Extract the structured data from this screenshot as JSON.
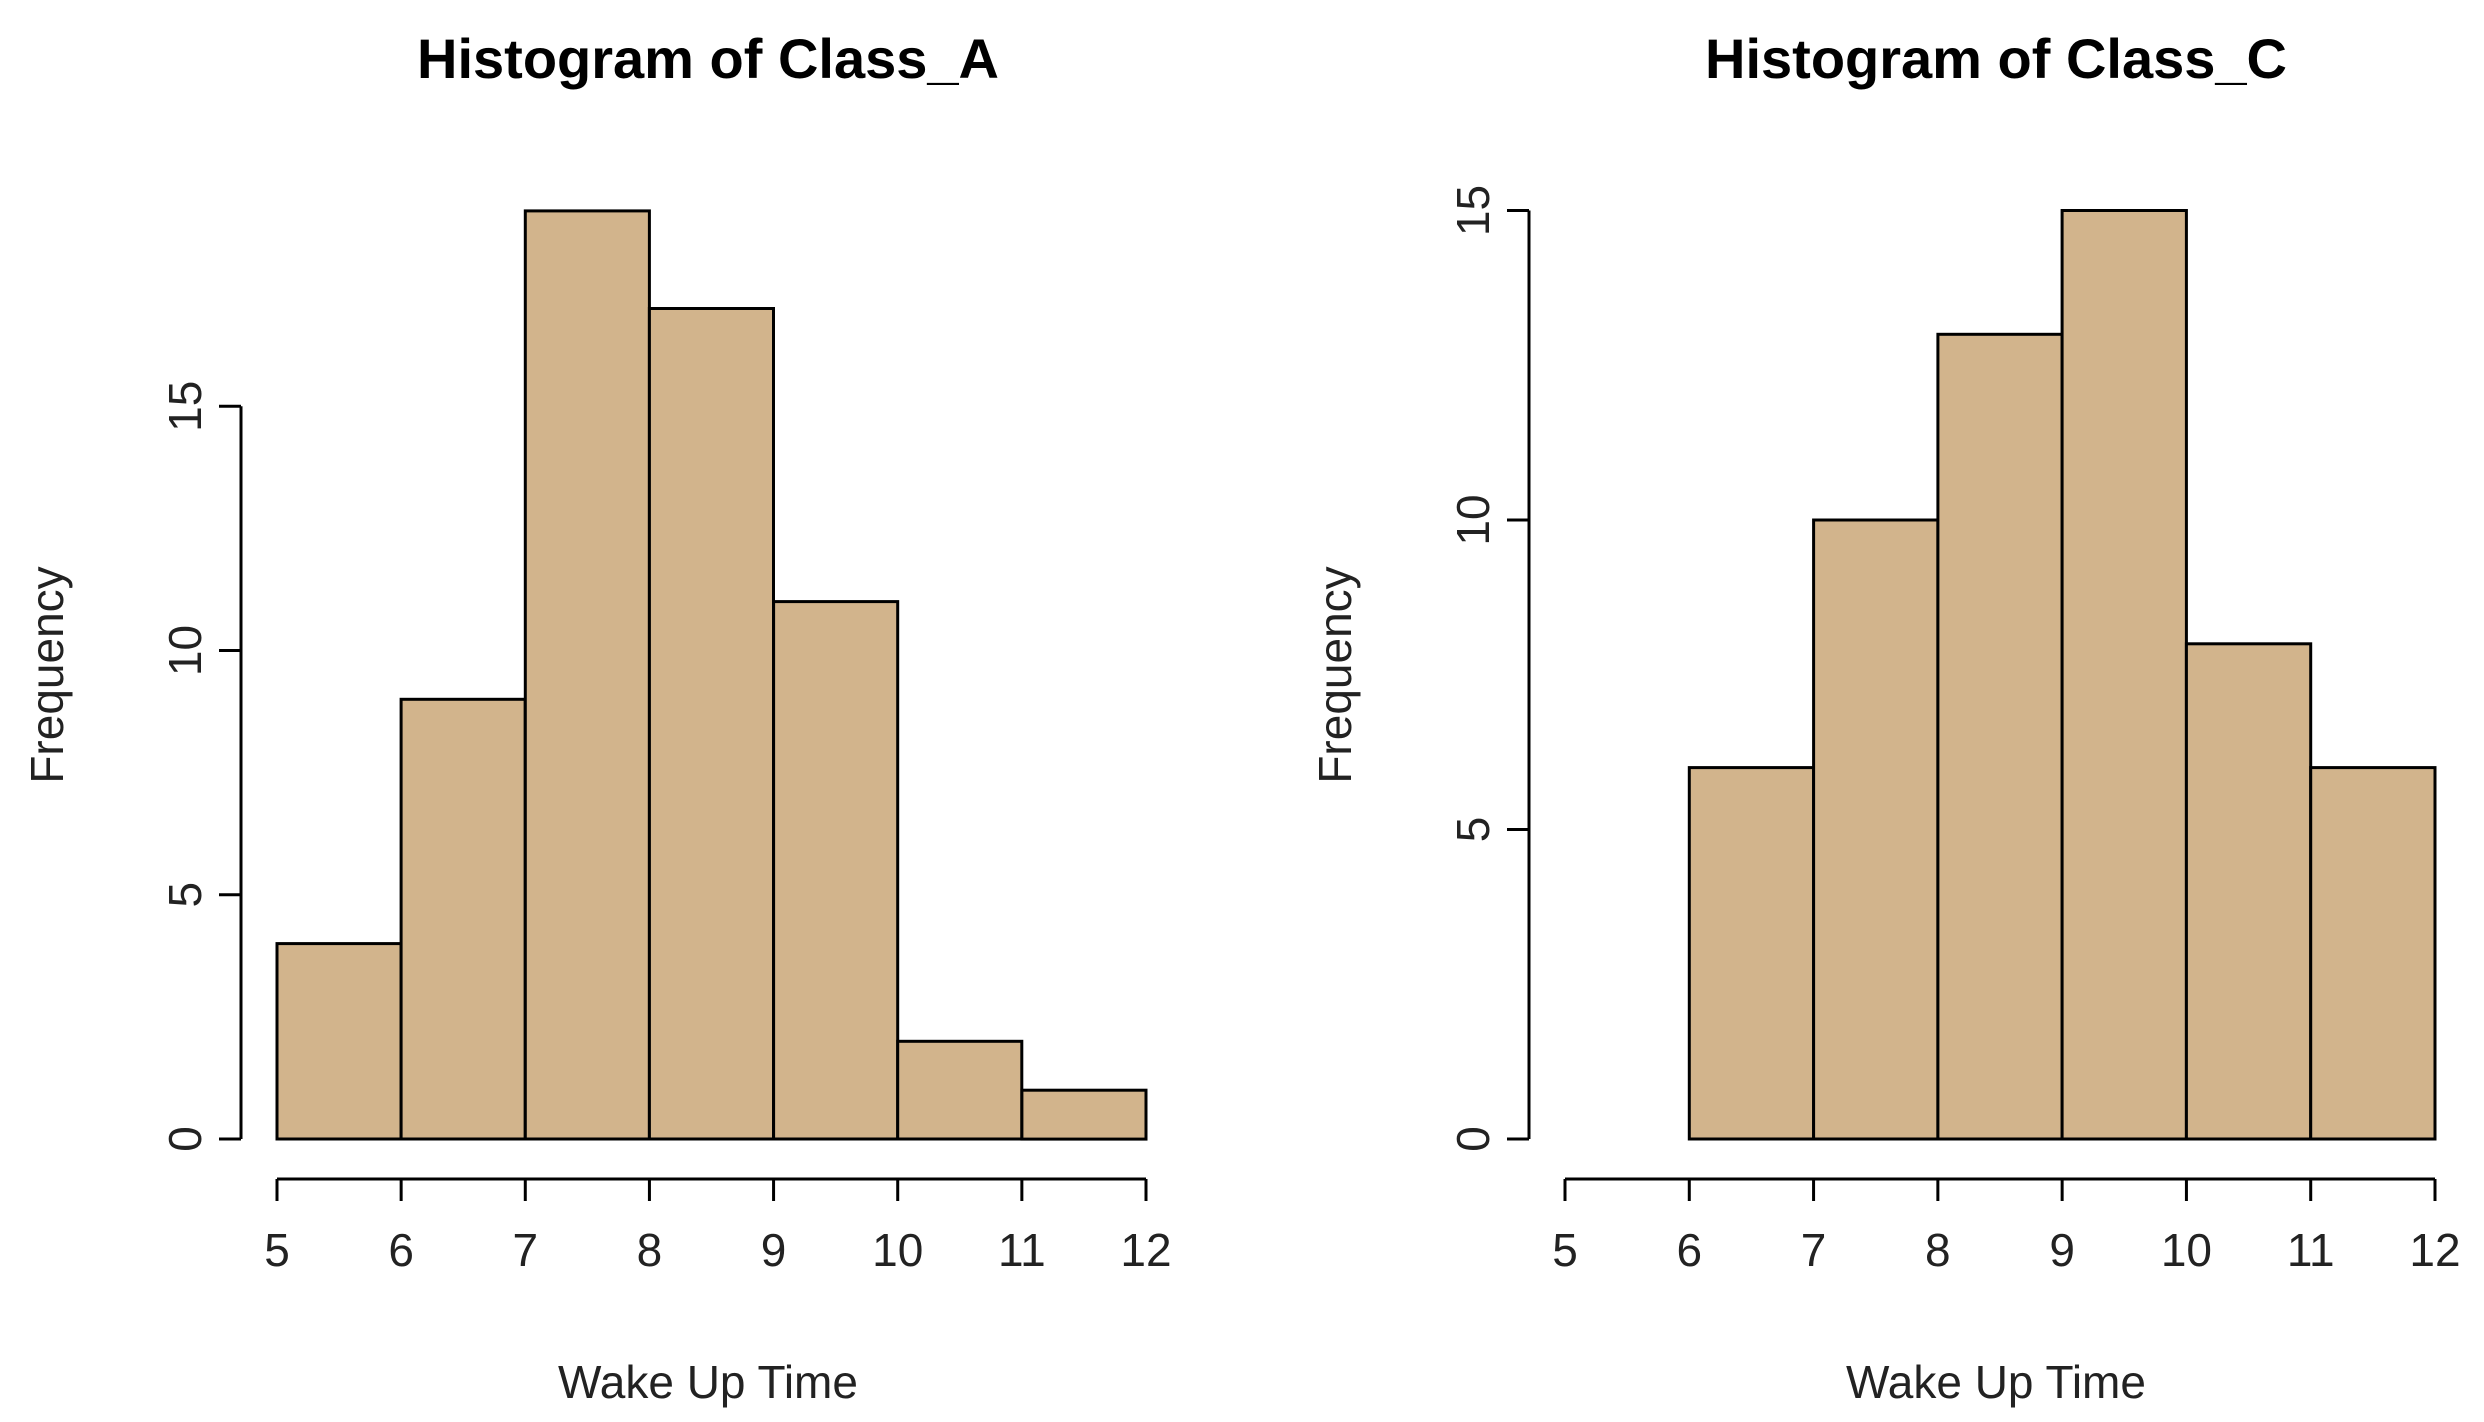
{
  "chart_data": [
    {
      "type": "bar",
      "title": "Histogram of Class_A",
      "xlabel": "Wake Up Time",
      "ylabel": "Frequency",
      "bins": [
        [
          5,
          6
        ],
        [
          6,
          7
        ],
        [
          7,
          8
        ],
        [
          8,
          9
        ],
        [
          9,
          10
        ],
        [
          10,
          11
        ],
        [
          11,
          12
        ]
      ],
      "values": [
        4,
        9,
        19,
        17,
        11,
        2,
        1
      ],
      "xlim": [
        5,
        12
      ],
      "x_ticks": [
        5,
        6,
        7,
        8,
        9,
        10,
        11,
        12
      ],
      "y_ticks": [
        0,
        5,
        10,
        15
      ],
      "ylim": [
        0,
        19
      ],
      "bar_color": "#d2b48c",
      "grid": false,
      "legend": "none"
    },
    {
      "type": "bar",
      "title": "Histogram of Class_C",
      "xlabel": "Wake Up Time",
      "ylabel": "Frequency",
      "bins": [
        [
          6,
          7
        ],
        [
          7,
          8
        ],
        [
          8,
          9
        ],
        [
          9,
          10
        ],
        [
          10,
          11
        ],
        [
          11,
          12
        ]
      ],
      "values": [
        6,
        10,
        13,
        15,
        8,
        6
      ],
      "xlim": [
        5,
        12
      ],
      "x_ticks": [
        5,
        6,
        7,
        8,
        9,
        10,
        11,
        12
      ],
      "y_ticks": [
        0,
        5,
        10,
        15
      ],
      "ylim": [
        0,
        15
      ],
      "bar_color": "#d2b48c",
      "grid": false,
      "legend": "none"
    }
  ]
}
